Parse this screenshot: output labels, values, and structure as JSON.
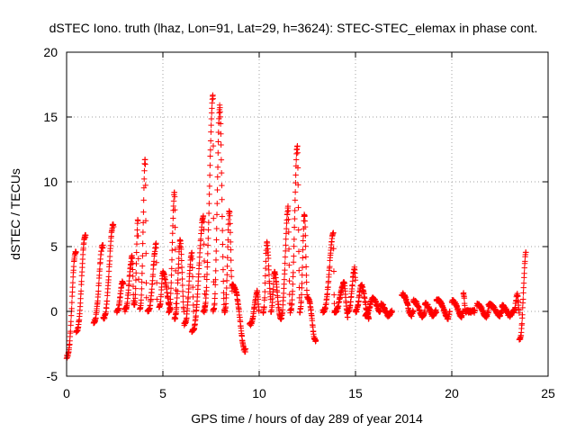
{
  "chart_data": {
    "type": "scatter",
    "title": "dSTEC Iono. truth (lhaz, Lon=91, Lat=29, h=3624): STEC-STEC_elemax in phase cont.",
    "xlabel": "GPS time / hours of day 289 of year 2014",
    "ylabel": "dSTEC  / TECUs",
    "xlim": [
      0,
      25
    ],
    "ylim": [
      -5,
      20
    ],
    "xticks": [
      0,
      5,
      10,
      15,
      20,
      25
    ],
    "yticks": [
      -5,
      0,
      5,
      10,
      15,
      20
    ],
    "grid": true,
    "marker": "+",
    "series_color": "#ff0000",
    "arcs": [
      {
        "t0": 0.0,
        "t1": 0.5,
        "y0": -3.5,
        "peak": 4.5,
        "tp": 0.45,
        "y1": 4.5
      },
      {
        "t0": 0.5,
        "t1": 1.0,
        "y0": -1.5,
        "peak": 5.8,
        "tp": 0.95,
        "y1": 5.8
      },
      {
        "t0": 1.4,
        "t1": 1.9,
        "y0": -0.8,
        "peak": 5.0,
        "tp": 1.85,
        "y1": 5.0
      },
      {
        "t0": 1.9,
        "t1": 2.45,
        "y0": -0.5,
        "peak": 6.6,
        "tp": 2.4,
        "y1": 6.6
      },
      {
        "t0": 2.6,
        "t1": 2.95,
        "y0": 0.0,
        "peak": 2.3,
        "tp": 2.9,
        "y1": 2.0
      },
      {
        "t0": 3.0,
        "t1": 3.5,
        "y0": 0.1,
        "peak": 4.2,
        "tp": 3.4,
        "y1": 0.5
      },
      {
        "t0": 3.5,
        "t1": 3.75,
        "y0": 0.5,
        "peak": 7.0,
        "tp": 3.7,
        "y1": 2.0
      },
      {
        "t0": 3.8,
        "t1": 4.15,
        "y0": 0.2,
        "peak": 11.8,
        "tp": 4.08,
        "y1": 1.0
      },
      {
        "t0": 4.2,
        "t1": 4.7,
        "y0": 0.0,
        "peak": 5.2,
        "tp": 4.65,
        "y1": 0.5
      },
      {
        "t0": 4.8,
        "t1": 5.4,
        "y0": 0.3,
        "peak": 3.0,
        "tp": 5.0,
        "y1": 0.2
      },
      {
        "t0": 5.3,
        "t1": 5.7,
        "y0": 0.0,
        "peak": 9.2,
        "tp": 5.6,
        "y1": 0.0
      },
      {
        "t0": 5.6,
        "t1": 6.1,
        "y0": -0.5,
        "peak": 5.5,
        "tp": 5.9,
        "y1": 0.0
      },
      {
        "t0": 6.1,
        "t1": 6.6,
        "y0": -1.0,
        "peak": 4.5,
        "tp": 6.5,
        "y1": 0.0
      },
      {
        "t0": 6.5,
        "t1": 7.2,
        "y0": -1.5,
        "peak": 7.3,
        "tp": 7.1,
        "y1": 0.0
      },
      {
        "t0": 7.1,
        "t1": 7.65,
        "y0": 0.0,
        "peak": 16.7,
        "tp": 7.6,
        "y1": 0.5
      },
      {
        "t0": 7.6,
        "t1": 8.2,
        "y0": 0.0,
        "peak": 15.8,
        "tp": 7.95,
        "y1": 0.0
      },
      {
        "t0": 8.2,
        "t1": 8.6,
        "y0": 0.0,
        "peak": 7.8,
        "tp": 8.45,
        "y1": 1.5
      },
      {
        "t0": 8.6,
        "t1": 9.3,
        "y0": 2.0,
        "peak": -3.0,
        "tp": 9.25,
        "y1": -3.0
      },
      {
        "t0": 9.5,
        "t1": 10.0,
        "y0": -1.0,
        "peak": 1.5,
        "tp": 9.9,
        "y1": 0.0
      },
      {
        "t0": 10.2,
        "t1": 10.6,
        "y0": 0.0,
        "peak": 5.4,
        "tp": 10.4,
        "y1": 1.0
      },
      {
        "t0": 10.6,
        "t1": 11.1,
        "y0": 0.0,
        "peak": 3.0,
        "tp": 10.8,
        "y1": -0.5
      },
      {
        "t0": 11.1,
        "t1": 11.6,
        "y0": -0.5,
        "peak": 8.0,
        "tp": 11.5,
        "y1": 0.5
      },
      {
        "t0": 11.6,
        "t1": 12.1,
        "y0": 0.0,
        "peak": 12.8,
        "tp": 11.98,
        "y1": 1.0
      },
      {
        "t0": 12.1,
        "t1": 12.5,
        "y0": 0.0,
        "peak": 7.5,
        "tp": 12.35,
        "y1": 1.0
      },
      {
        "t0": 12.5,
        "t1": 12.95,
        "y0": 1.0,
        "peak": -2.2,
        "tp": 12.9,
        "y1": -2.2
      },
      {
        "t0": 13.3,
        "t1": 13.9,
        "y0": 0.0,
        "peak": 6.0,
        "tp": 13.85,
        "y1": 0.5
      },
      {
        "t0": 13.9,
        "t1": 14.6,
        "y0": 0.0,
        "peak": 2.2,
        "tp": 14.4,
        "y1": -0.4
      },
      {
        "t0": 14.6,
        "t1": 15.0,
        "y0": 0.0,
        "peak": 3.3,
        "tp": 14.95,
        "y1": 2.5
      },
      {
        "t0": 15.0,
        "t1": 15.7,
        "y0": 0.0,
        "peak": 2.0,
        "tp": 15.3,
        "y1": -0.5
      },
      {
        "t0": 15.5,
        "t1": 16.3,
        "y0": -0.3,
        "peak": 1.0,
        "tp": 15.9,
        "y1": 0.0
      },
      {
        "t0": 16.3,
        "t1": 16.9,
        "y0": 0.5,
        "peak": -0.3,
        "tp": 16.7,
        "y1": 0.0
      },
      {
        "t0": 17.4,
        "t1": 18.0,
        "y0": 1.3,
        "peak": -0.3,
        "tp": 17.9,
        "y1": 0.0
      },
      {
        "t0": 18.0,
        "t1": 18.6,
        "y0": 0.8,
        "peak": -0.4,
        "tp": 18.5,
        "y1": 0.0
      },
      {
        "t0": 18.6,
        "t1": 19.2,
        "y0": 0.6,
        "peak": -0.3,
        "tp": 19.0,
        "y1": 0.0
      },
      {
        "t0": 19.2,
        "t1": 19.9,
        "y0": 0.9,
        "peak": -0.5,
        "tp": 19.8,
        "y1": 0.0
      },
      {
        "t0": 20.0,
        "t1": 20.6,
        "y0": 0.8,
        "peak": -0.4,
        "tp": 20.5,
        "y1": 0.0
      },
      {
        "t0": 20.6,
        "t1": 21.2,
        "y0": 1.4,
        "peak": 0.0,
        "tp": 20.7,
        "y1": 0.0
      },
      {
        "t0": 21.3,
        "t1": 21.9,
        "y0": 0.5,
        "peak": -0.4,
        "tp": 21.8,
        "y1": 0.0
      },
      {
        "t0": 21.9,
        "t1": 22.6,
        "y0": 0.5,
        "peak": -0.3,
        "tp": 22.5,
        "y1": 0.0
      },
      {
        "t0": 22.6,
        "t1": 23.2,
        "y0": 0.4,
        "peak": -0.3,
        "tp": 23.0,
        "y1": 0.0
      },
      {
        "t0": 23.2,
        "t1": 23.5,
        "y0": 0.0,
        "peak": 1.3,
        "tp": 23.4,
        "y1": 0.0
      },
      {
        "t0": 23.5,
        "t1": 23.85,
        "y0": -2.2,
        "peak": 4.5,
        "tp": 23.85,
        "y1": 4.5
      }
    ]
  }
}
